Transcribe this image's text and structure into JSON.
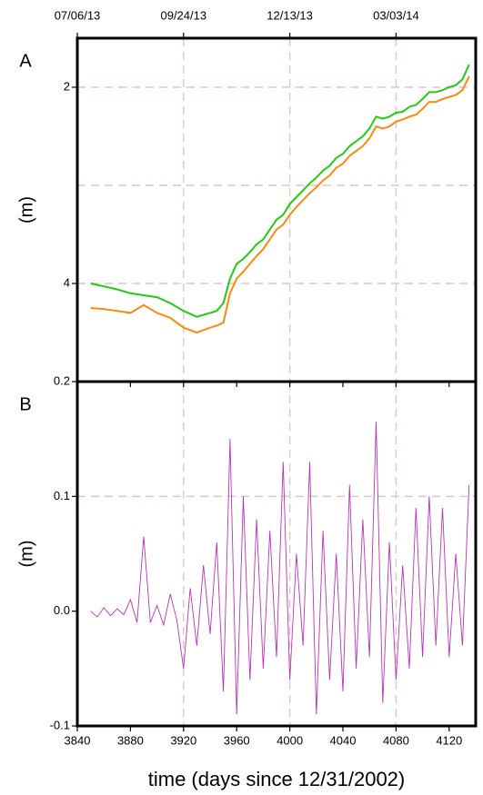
{
  "chart_data": [
    {
      "type": "line",
      "label": "A",
      "ylabel": "(m)",
      "xlim": [
        3840,
        4140
      ],
      "ylim": [
        5,
        1.5
      ],
      "x2ticks": [
        {
          "value": 3840,
          "label": "07/06/13"
        },
        {
          "value": 3920,
          "label": "09/24/13"
        },
        {
          "value": 4000,
          "label": "12/13/13"
        },
        {
          "value": 4080,
          "label": "03/03/14"
        }
      ],
      "xgrid": [
        3920,
        4000,
        4080
      ],
      "yticks": [
        2,
        4
      ],
      "ygrid": [
        2,
        3,
        4
      ],
      "grid": true,
      "x": [
        3850,
        3860,
        3870,
        3880,
        3890,
        3900,
        3910,
        3920,
        3930,
        3940,
        3945,
        3950,
        3955,
        3960,
        3965,
        3970,
        3975,
        3980,
        3985,
        3990,
        3995,
        4000,
        4005,
        4010,
        4015,
        4020,
        4025,
        4030,
        4035,
        4040,
        4045,
        4050,
        4055,
        4060,
        4065,
        4070,
        4075,
        4080,
        4085,
        4090,
        4095,
        4100,
        4105,
        4110,
        4115,
        4120,
        4125,
        4130,
        4135
      ],
      "series": [
        {
          "color": "#22cc11",
          "values": [
            4.0,
            4.03,
            4.06,
            4.1,
            4.12,
            4.14,
            4.2,
            4.28,
            4.34,
            4.3,
            4.28,
            4.2,
            3.95,
            3.8,
            3.75,
            3.68,
            3.6,
            3.55,
            3.45,
            3.35,
            3.3,
            3.19,
            3.12,
            3.05,
            2.98,
            2.92,
            2.85,
            2.8,
            2.72,
            2.68,
            2.6,
            2.55,
            2.5,
            2.42,
            2.3,
            2.32,
            2.3,
            2.26,
            2.25,
            2.2,
            2.18,
            2.12,
            2.05,
            2.05,
            2.03,
            2.0,
            1.98,
            1.92,
            1.77
          ]
        },
        {
          "color": "#ff8811",
          "values": [
            4.25,
            4.26,
            4.28,
            4.3,
            4.22,
            4.3,
            4.35,
            4.45,
            4.5,
            4.45,
            4.43,
            4.4,
            4.1,
            3.95,
            3.88,
            3.8,
            3.72,
            3.65,
            3.55,
            3.45,
            3.4,
            3.3,
            3.22,
            3.15,
            3.08,
            3.02,
            2.95,
            2.9,
            2.82,
            2.78,
            2.7,
            2.65,
            2.6,
            2.52,
            2.4,
            2.42,
            2.4,
            2.35,
            2.33,
            2.3,
            2.28,
            2.22,
            2.15,
            2.15,
            2.12,
            2.1,
            2.08,
            2.03,
            1.89
          ]
        }
      ]
    },
    {
      "type": "line",
      "label": "B",
      "ylabel": "(m)",
      "xlabel": "time (days since 12/31/2002)",
      "xlim": [
        3840,
        4140
      ],
      "ylim": [
        -0.1,
        0.2
      ],
      "xticks": [
        3840,
        3880,
        3920,
        3960,
        4000,
        4040,
        4080,
        4120
      ],
      "xgrid": [
        3920,
        4000,
        4080
      ],
      "yticks": [
        -0.1,
        {
          "value": 0,
          "label": "0.0"
        },
        0.1,
        0.2
      ],
      "ygrid": [
        0.1
      ],
      "grid": true,
      "x": [
        3850,
        3855,
        3860,
        3865,
        3870,
        3875,
        3880,
        3885,
        3890,
        3895,
        3900,
        3905,
        3910,
        3915,
        3920,
        3925,
        3930,
        3935,
        3940,
        3945,
        3950,
        3955,
        3960,
        3965,
        3970,
        3975,
        3980,
        3985,
        3990,
        3995,
        4000,
        4005,
        4010,
        4015,
        4020,
        4025,
        4030,
        4035,
        4040,
        4045,
        4050,
        4055,
        4060,
        4065,
        4070,
        4075,
        4080,
        4085,
        4090,
        4095,
        4100,
        4105,
        4110,
        4115,
        4120,
        4125,
        4130,
        4135
      ],
      "series": [
        {
          "color": "#bb33bb",
          "values": [
            0.0,
            -0.005,
            0.003,
            -0.004,
            0.002,
            -0.003,
            0.01,
            -0.01,
            0.065,
            -0.01,
            0.005,
            -0.012,
            0.015,
            -0.008,
            -0.05,
            0.02,
            -0.03,
            0.04,
            -0.02,
            0.06,
            -0.07,
            0.15,
            -0.09,
            0.1,
            -0.06,
            0.08,
            -0.05,
            0.07,
            -0.04,
            0.13,
            -0.06,
            0.05,
            -0.03,
            0.13,
            -0.09,
            0.07,
            -0.06,
            0.05,
            -0.07,
            0.11,
            -0.05,
            0.08,
            -0.04,
            0.165,
            -0.08,
            0.06,
            -0.06,
            0.04,
            -0.05,
            0.09,
            -0.04,
            0.1,
            -0.03,
            0.09,
            -0.04,
            0.05,
            -0.03,
            0.11
          ]
        }
      ]
    }
  ]
}
